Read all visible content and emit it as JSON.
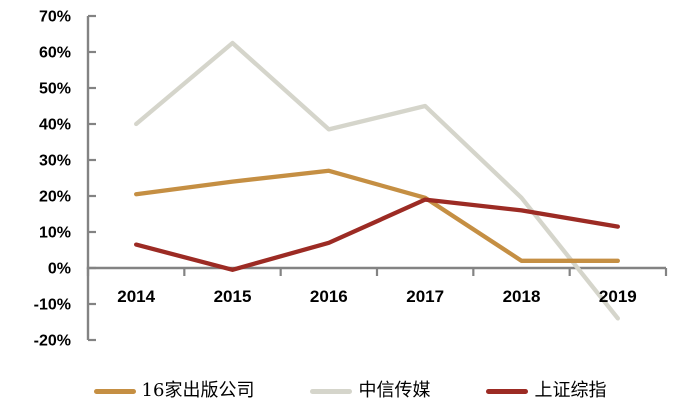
{
  "chart_data": {
    "type": "line",
    "categories": [
      "2014",
      "2015",
      "2016",
      "2017",
      "2018",
      "2019"
    ],
    "series": [
      {
        "name": "16家出版公司",
        "color": "#C58F43",
        "values": [
          20.5,
          24,
          27,
          19.5,
          2,
          2
        ]
      },
      {
        "name": "中信传媒",
        "color": "#D5D5CB",
        "values": [
          40,
          62.5,
          38.5,
          45,
          19.5,
          -14
        ]
      },
      {
        "name": "上证综指",
        "color": "#9C2B24",
        "values": [
          6.5,
          -0.5,
          7,
          19,
          16,
          11.5
        ]
      }
    ],
    "draw_order": [
      1,
      0,
      2
    ],
    "y_axis": {
      "min": -20,
      "max": 70,
      "step": 10,
      "unit": "%",
      "tick_labels": [
        "70%",
        "60%",
        "50%",
        "40%",
        "30%",
        "20%",
        "10%",
        "0%",
        "-10%",
        "-20%"
      ]
    },
    "grid": false,
    "legend_position": "bottom",
    "axis_color": "#838383",
    "text_color": "#000000"
  }
}
